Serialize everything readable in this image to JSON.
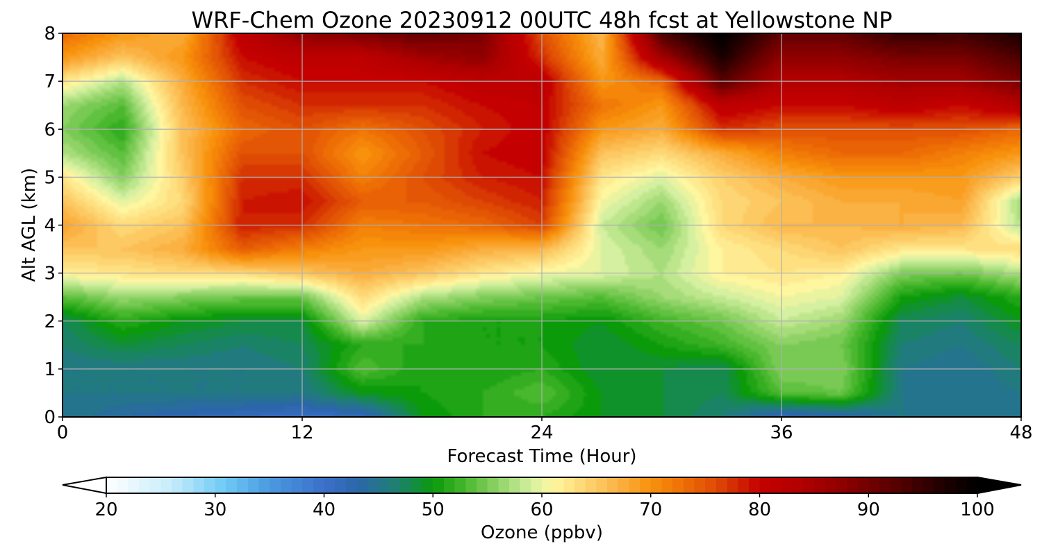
{
  "chart_data": {
    "type": "heatmap",
    "title": "WRF-Chem Ozone  20230912 00UTC 48h fcst at Yellowstone NP",
    "xlabel": "Forecast Time (Hour)",
    "ylabel": "Alt AGL (km)",
    "xlim": [
      0,
      48
    ],
    "ylim": [
      0,
      8
    ],
    "xticks": [
      0,
      12,
      24,
      36,
      48
    ],
    "xtick_labels": [
      "0",
      "12",
      "24",
      "36",
      "48"
    ],
    "yticks": [
      0,
      1,
      2,
      3,
      4,
      5,
      6,
      7,
      8
    ],
    "ytick_labels": [
      "0",
      "1",
      "2",
      "3",
      "4",
      "5",
      "6",
      "7",
      "8"
    ],
    "grid": true,
    "x_hours": [
      0,
      3,
      6,
      9,
      12,
      15,
      18,
      21,
      24,
      27,
      30,
      33,
      36,
      39,
      42,
      45,
      48
    ],
    "y_km": [
      0,
      0.5,
      1,
      1.5,
      2,
      2.5,
      3,
      3.5,
      4,
      4.5,
      5,
      5.5,
      6,
      6.5,
      7,
      7.5,
      8
    ],
    "z_ppbv": [
      [
        46,
        44,
        43,
        42,
        41,
        42,
        50,
        52,
        52,
        50,
        49,
        47,
        42,
        43,
        46,
        46,
        46
      ],
      [
        46,
        46,
        46,
        46,
        46,
        50,
        51,
        52,
        54,
        50,
        49,
        48,
        54,
        55,
        46,
        45,
        46
      ],
      [
        46,
        46,
        46,
        46,
        47,
        54,
        51,
        51,
        52,
        49,
        49,
        48,
        56,
        56,
        46,
        45,
        47
      ],
      [
        47,
        49,
        48,
        47,
        48,
        52,
        52,
        51,
        51,
        49,
        51,
        53,
        56,
        55,
        47,
        46,
        48
      ],
      [
        48,
        52,
        50,
        49,
        49,
        60,
        52,
        51,
        51,
        50,
        53,
        55,
        59,
        57,
        48,
        47,
        50
      ],
      [
        54,
        57,
        56,
        55,
        55,
        64,
        58,
        56,
        55,
        54,
        57,
        59,
        61,
        60,
        51,
        49,
        52
      ],
      [
        62,
        63,
        64,
        64,
        66,
        68,
        66,
        63,
        61,
        60,
        58,
        62,
        63,
        62,
        56,
        55,
        58
      ],
      [
        66,
        66,
        68,
        75,
        72,
        70,
        70,
        68,
        67,
        60,
        57,
        62,
        64,
        66,
        63,
        63,
        64
      ],
      [
        69,
        64,
        66,
        79,
        78,
        72,
        73,
        74,
        77,
        59,
        55,
        64,
        67,
        67,
        68,
        67,
        58
      ],
      [
        66,
        60,
        64,
        79,
        80,
        75,
        75,
        77,
        79,
        61,
        57,
        64,
        66,
        68,
        68,
        69,
        57
      ],
      [
        63,
        56,
        65,
        78,
        78,
        72,
        76,
        79,
        80,
        63,
        60,
        65,
        68,
        70,
        70,
        70,
        65
      ],
      [
        58,
        54,
        66,
        76,
        76,
        70,
        75,
        80,
        81,
        66,
        64,
        68,
        72,
        74,
        74,
        72,
        70
      ],
      [
        56,
        52,
        66,
        74,
        76,
        73,
        76,
        79,
        81,
        70,
        68,
        78,
        76,
        76,
        76,
        76,
        74
      ],
      [
        57,
        54,
        67,
        76,
        78,
        78,
        78,
        80,
        81,
        73,
        70,
        82,
        80,
        80,
        82,
        80,
        84
      ],
      [
        63,
        58,
        68,
        78,
        80,
        80,
        80,
        82,
        82,
        70,
        74,
        93,
        84,
        84,
        86,
        86,
        90
      ],
      [
        70,
        66,
        70,
        80,
        82,
        82,
        86,
        88,
        78,
        68,
        86,
        98,
        88,
        88,
        90,
        90,
        94
      ],
      [
        74,
        70,
        68,
        82,
        88,
        90,
        92,
        90,
        76,
        67,
        94,
        101,
        92,
        92,
        96,
        95,
        98
      ]
    ],
    "colorbar": {
      "label": "Ozone  (ppbv)",
      "min": 20,
      "max": 100,
      "extend": "both",
      "ticks": [
        20,
        30,
        40,
        50,
        60,
        70,
        80,
        90,
        100
      ],
      "tick_labels": [
        "20",
        "30",
        "40",
        "50",
        "60",
        "70",
        "80",
        "90",
        "100"
      ],
      "stops": [
        {
          "v": 20,
          "c": "#ffffff"
        },
        {
          "v": 26,
          "c": "#c6ecfb"
        },
        {
          "v": 31,
          "c": "#6cc8f4"
        },
        {
          "v": 35,
          "c": "#4a9ae0"
        },
        {
          "v": 40,
          "c": "#3c6fc9"
        },
        {
          "v": 43,
          "c": "#2c66aa"
        },
        {
          "v": 46,
          "c": "#217b7e"
        },
        {
          "v": 48,
          "c": "#158a4c"
        },
        {
          "v": 50,
          "c": "#0a9a0a"
        },
        {
          "v": 53,
          "c": "#4ab82e"
        },
        {
          "v": 57,
          "c": "#a6dc7a"
        },
        {
          "v": 59,
          "c": "#d4f0a0"
        },
        {
          "v": 61,
          "c": "#fff6a0"
        },
        {
          "v": 64,
          "c": "#fdd572"
        },
        {
          "v": 67,
          "c": "#fbb244"
        },
        {
          "v": 70,
          "c": "#f8920c"
        },
        {
          "v": 73,
          "c": "#ee6e06"
        },
        {
          "v": 76,
          "c": "#de4a04"
        },
        {
          "v": 80,
          "c": "#c40000"
        },
        {
          "v": 84,
          "c": "#b00000"
        },
        {
          "v": 88,
          "c": "#8a0000"
        },
        {
          "v": 93,
          "c": "#500000"
        },
        {
          "v": 97,
          "c": "#1e0000"
        },
        {
          "v": 100,
          "c": "#000000"
        }
      ]
    }
  }
}
